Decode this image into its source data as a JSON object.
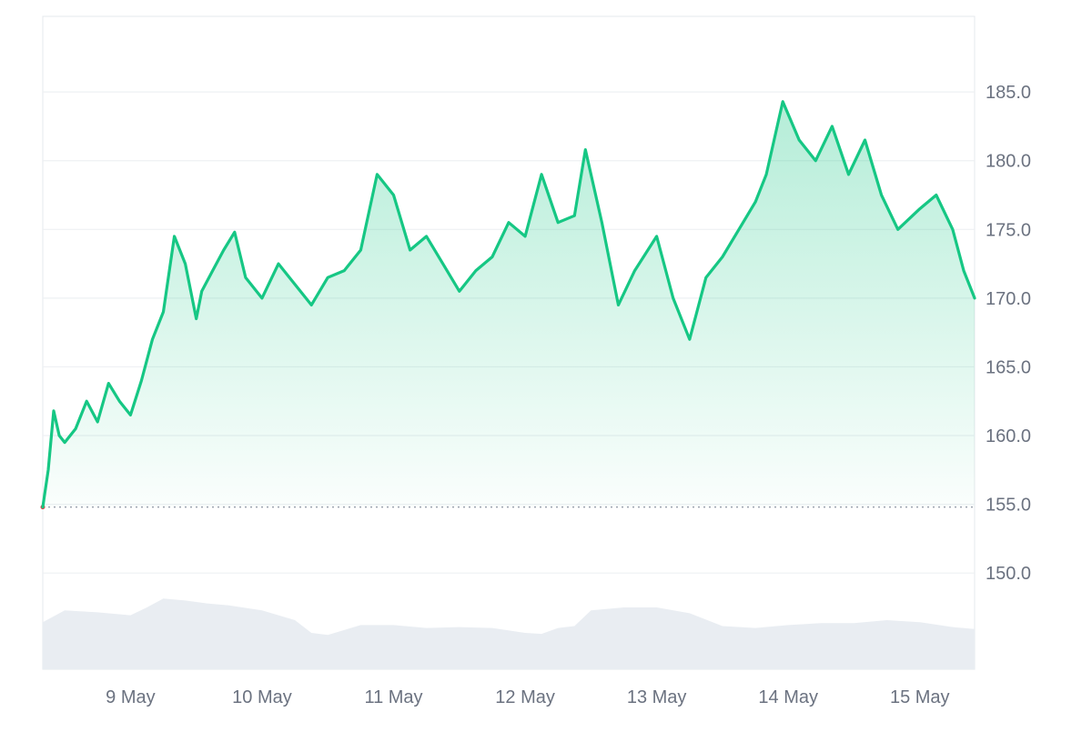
{
  "colors": {
    "line": "#16c784",
    "area_top": "#16c784",
    "volume": "#e9edf2",
    "baseline_marker": "#ea3943",
    "grid": "#eef0f3",
    "axis_text": "#6b7280"
  },
  "chart_data": {
    "type": "area",
    "title": "",
    "xlabel": "",
    "ylabel": "",
    "ylim": [
      143.0,
      190.5
    ],
    "xlim": [
      "2024-05-08T08:00",
      "2024-05-15T10:00"
    ],
    "yticks": [
      "185.0",
      "180.0",
      "175.0",
      "170.0",
      "165.0",
      "160.0",
      "155.0",
      "150.0"
    ],
    "ytick_values": [
      185,
      180,
      175,
      170,
      165,
      160,
      155,
      150
    ],
    "xticks": [
      "9 May",
      "10 May",
      "11 May",
      "12 May",
      "13 May",
      "14 May",
      "15 May"
    ],
    "xtick_values": [
      "2024-05-09T00:00",
      "2024-05-10T00:00",
      "2024-05-11T00:00",
      "2024-05-12T00:00",
      "2024-05-13T00:00",
      "2024-05-14T00:00",
      "2024-05-15T00:00"
    ],
    "baseline": 154.8,
    "grid": true,
    "series": [
      {
        "kind": "price",
        "x": [
          "2024-05-08T08:00",
          "2024-05-08T09:00",
          "2024-05-08T10:00",
          "2024-05-08T11:00",
          "2024-05-08T12:00",
          "2024-05-08T14:00",
          "2024-05-08T16:00",
          "2024-05-08T18:00",
          "2024-05-08T20:00",
          "2024-05-08T22:00",
          "2024-05-09T00:00",
          "2024-05-09T02:00",
          "2024-05-09T04:00",
          "2024-05-09T06:00",
          "2024-05-09T08:00",
          "2024-05-09T10:00",
          "2024-05-09T12:00",
          "2024-05-09T13:00",
          "2024-05-09T15:00",
          "2024-05-09T17:00",
          "2024-05-09T19:00",
          "2024-05-09T21:00",
          "2024-05-10T00:00",
          "2024-05-10T03:00",
          "2024-05-10T06:00",
          "2024-05-10T09:00",
          "2024-05-10T12:00",
          "2024-05-10T15:00",
          "2024-05-10T18:00",
          "2024-05-10T21:00",
          "2024-05-11T00:00",
          "2024-05-11T03:00",
          "2024-05-11T06:00",
          "2024-05-11T09:00",
          "2024-05-11T12:00",
          "2024-05-11T15:00",
          "2024-05-11T18:00",
          "2024-05-11T21:00",
          "2024-05-12T00:00",
          "2024-05-12T03:00",
          "2024-05-12T06:00",
          "2024-05-12T09:00",
          "2024-05-12T11:00",
          "2024-05-12T14:00",
          "2024-05-12T17:00",
          "2024-05-12T20:00",
          "2024-05-13T00:00",
          "2024-05-13T03:00",
          "2024-05-13T06:00",
          "2024-05-13T09:00",
          "2024-05-13T12:00",
          "2024-05-13T15:00",
          "2024-05-13T18:00",
          "2024-05-13T20:00",
          "2024-05-13T23:00",
          "2024-05-14T02:00",
          "2024-05-14T05:00",
          "2024-05-14T08:00",
          "2024-05-14T11:00",
          "2024-05-14T14:00",
          "2024-05-14T17:00",
          "2024-05-14T20:00",
          "2024-05-15T00:00",
          "2024-05-15T03:00",
          "2024-05-15T06:00",
          "2024-05-15T08:00",
          "2024-05-15T10:00"
        ],
        "values": [
          154.8,
          157.5,
          161.8,
          160.0,
          159.5,
          160.5,
          162.5,
          161.0,
          163.8,
          162.5,
          161.5,
          164.0,
          167.0,
          169.0,
          174.5,
          172.5,
          168.5,
          170.5,
          172.0,
          173.5,
          174.8,
          171.5,
          170.0,
          172.5,
          171.0,
          169.5,
          171.5,
          172.0,
          173.5,
          179.0,
          177.5,
          173.5,
          174.5,
          172.5,
          170.5,
          172.0,
          173.0,
          175.5,
          174.5,
          179.0,
          175.5,
          176.0,
          180.8,
          175.5,
          169.5,
          172.0,
          174.5,
          170.0,
          167.0,
          171.5,
          173.0,
          175.0,
          177.0,
          179.0,
          184.3,
          181.5,
          180.0,
          182.5,
          179.0,
          181.5,
          177.5,
          175.0,
          176.5,
          177.5,
          175.0,
          172.0,
          170.0
        ]
      },
      {
        "kind": "volume",
        "x": [
          "2024-05-08T08:00",
          "2024-05-08T12:00",
          "2024-05-08T18:00",
          "2024-05-09T00:00",
          "2024-05-09T03:00",
          "2024-05-09T06:00",
          "2024-05-09T10:00",
          "2024-05-09T14:00",
          "2024-05-09T18:00",
          "2024-05-10T00:00",
          "2024-05-10T06:00",
          "2024-05-10T09:00",
          "2024-05-10T12:00",
          "2024-05-10T18:00",
          "2024-05-11T00:00",
          "2024-05-11T06:00",
          "2024-05-11T12:00",
          "2024-05-11T18:00",
          "2024-05-12T00:00",
          "2024-05-12T03:00",
          "2024-05-12T06:00",
          "2024-05-12T09:00",
          "2024-05-12T12:00",
          "2024-05-12T18:00",
          "2024-05-13T00:00",
          "2024-05-13T06:00",
          "2024-05-13T12:00",
          "2024-05-13T18:00",
          "2024-05-14T00:00",
          "2024-05-14T06:00",
          "2024-05-14T12:00",
          "2024-05-14T18:00",
          "2024-05-15T00:00",
          "2024-05-15T06:00",
          "2024-05-15T10:00"
        ],
        "values": [
          0.48,
          0.6,
          0.58,
          0.55,
          0.63,
          0.72,
          0.7,
          0.67,
          0.65,
          0.6,
          0.5,
          0.37,
          0.35,
          0.45,
          0.45,
          0.42,
          0.43,
          0.42,
          0.37,
          0.36,
          0.42,
          0.44,
          0.6,
          0.63,
          0.63,
          0.57,
          0.44,
          0.42,
          0.45,
          0.47,
          0.47,
          0.5,
          0.48,
          0.43,
          0.41
        ]
      }
    ]
  }
}
